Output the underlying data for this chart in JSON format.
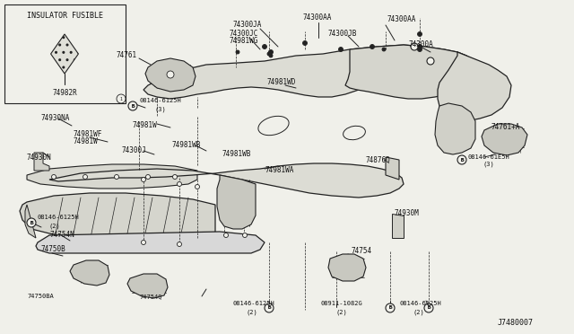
{
  "bg_color": "#f0f0ea",
  "line_color": "#222222",
  "text_color": "#111111",
  "diagram_number": "J7480007",
  "inset_label": "INSULATOR FUSIBLE",
  "inset_part": "74982R",
  "figsize": [
    6.4,
    3.72
  ],
  "dpi": 100
}
